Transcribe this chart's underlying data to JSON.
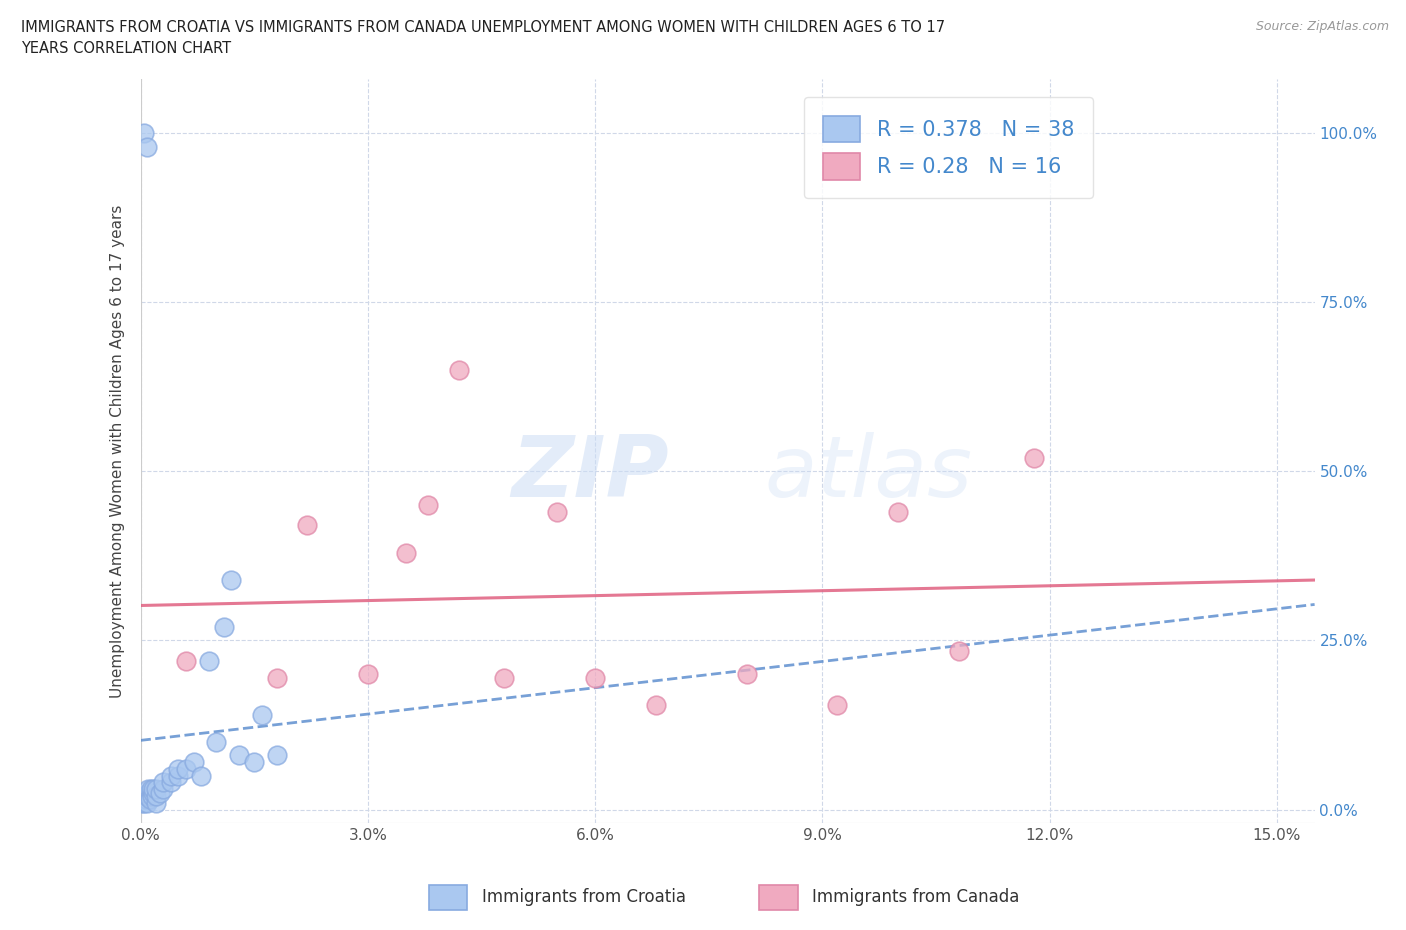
{
  "title_line1": "IMMIGRANTS FROM CROATIA VS IMMIGRANTS FROM CANADA UNEMPLOYMENT AMONG WOMEN WITH CHILDREN AGES 6 TO 17",
  "title_line2": "YEARS CORRELATION CHART",
  "source": "Source: ZipAtlas.com",
  "legend_label_croatia": "Immigrants from Croatia",
  "legend_label_canada": "Immigrants from Canada",
  "ylabel_label": "Unemployment Among Women with Children Ages 6 to 17 years",
  "xlim": [
    0.0,
    0.155
  ],
  "ylim": [
    -0.02,
    1.08
  ],
  "xticks": [
    0.0,
    0.03,
    0.06,
    0.09,
    0.12,
    0.15
  ],
  "xticklabels": [
    "0.0%",
    "3.0%",
    "6.0%",
    "9.0%",
    "12.0%",
    "15.0%"
  ],
  "yticks": [
    0.0,
    0.25,
    0.5,
    0.75,
    1.0
  ],
  "yticklabels": [
    "0.0%",
    "25.0%",
    "50.0%",
    "75.0%",
    "100.0%"
  ],
  "croatia_fill": "#aac8f0",
  "croatia_edge": "#88aae0",
  "canada_fill": "#f0aac0",
  "canada_edge": "#e088a8",
  "croatia_line_color": "#5588cc",
  "canada_line_color": "#e06080",
  "croatia_R": 0.378,
  "croatia_N": 38,
  "canada_R": 0.28,
  "canada_N": 16,
  "croatia_x": [
    0.0002,
    0.0004,
    0.0005,
    0.0006,
    0.0007,
    0.0008,
    0.0009,
    0.001,
    0.001,
    0.0012,
    0.0013,
    0.0014,
    0.0015,
    0.0016,
    0.0017,
    0.002,
    0.002,
    0.002,
    0.0025,
    0.003,
    0.003,
    0.004,
    0.004,
    0.005,
    0.005,
    0.006,
    0.007,
    0.008,
    0.009,
    0.01,
    0.011,
    0.012,
    0.013,
    0.015,
    0.016,
    0.018,
    0.0005,
    0.0008
  ],
  "croatia_y": [
    0.01,
    0.015,
    0.01,
    0.02,
    0.015,
    0.01,
    0.02,
    0.025,
    0.03,
    0.02,
    0.015,
    0.03,
    0.02,
    0.025,
    0.03,
    0.01,
    0.02,
    0.03,
    0.025,
    0.03,
    0.04,
    0.04,
    0.05,
    0.05,
    0.06,
    0.06,
    0.07,
    0.05,
    0.22,
    0.1,
    0.27,
    0.34,
    0.08,
    0.07,
    0.14,
    0.08,
    1.0,
    0.98
  ],
  "canada_x": [
    0.006,
    0.018,
    0.022,
    0.03,
    0.035,
    0.038,
    0.042,
    0.048,
    0.055,
    0.06,
    0.068,
    0.08,
    0.092,
    0.1,
    0.108,
    0.118
  ],
  "canada_y": [
    0.22,
    0.195,
    0.42,
    0.2,
    0.38,
    0.45,
    0.65,
    0.195,
    0.44,
    0.195,
    0.155,
    0.2,
    0.155,
    0.44,
    0.235,
    0.52
  ],
  "watermark_zip": "ZIP",
  "watermark_atlas": "atlas",
  "bg_color": "#ffffff",
  "grid_color": "#d0d8e8",
  "tick_color": "#4488cc",
  "legend_text_color": "#4488cc"
}
